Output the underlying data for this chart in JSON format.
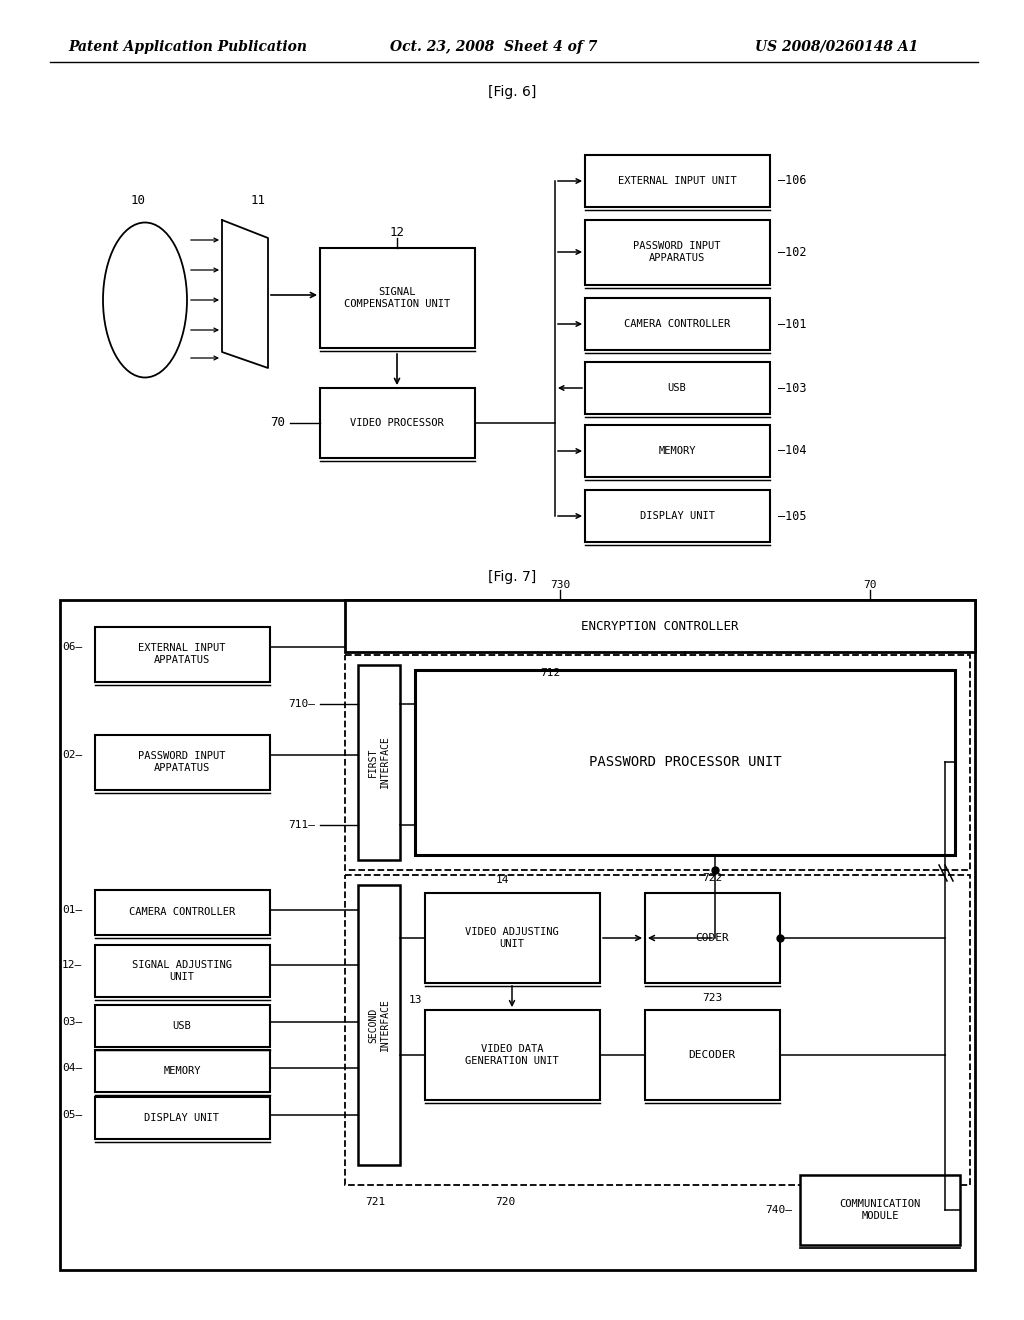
{
  "fig_width": 10.24,
  "fig_height": 13.2,
  "dpi": 100,
  "bg_color": "#ffffff",
  "header_left": "Patent Application Publication",
  "header_mid": "Oct. 23, 2008  Sheet 4 of 7",
  "header_right": "US 2008/0260148 A1",
  "fig6_label": "[Fig. 6]",
  "fig7_label": "[Fig. 7]"
}
